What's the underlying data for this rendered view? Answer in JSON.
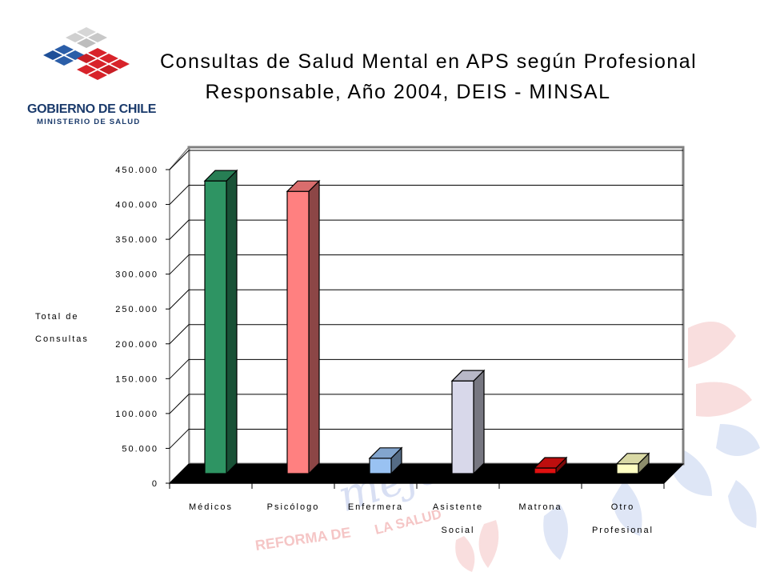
{
  "header": {
    "logo_line1": "GOBIERNO DE CHILE",
    "logo_line2": "MINISTERIO DE SALUD"
  },
  "watermark": {
    "text1": "REFORMA DE",
    "text2": "LA SALUD",
    "text3": "mejor"
  },
  "chart_data": {
    "type": "bar",
    "style": "3d",
    "title_line1": "Consultas de Salud Mental en APS según Profesional",
    "title_line2": "Responsable, Año 2004, DEIS - MINSAL",
    "ylabel_line1": "Total de",
    "ylabel_line2": "Consultas",
    "xlabel": "",
    "ylim": [
      0,
      450000
    ],
    "yticks": [
      {
        "value": 0,
        "label": "0"
      },
      {
        "value": 50000,
        "label": "50.000"
      },
      {
        "value": 100000,
        "label": "100.000"
      },
      {
        "value": 150000,
        "label": "150.000"
      },
      {
        "value": 200000,
        "label": "200.000"
      },
      {
        "value": 250000,
        "label": "250.000"
      },
      {
        "value": 300000,
        "label": "300.000"
      },
      {
        "value": 350000,
        "label": "350.000"
      },
      {
        "value": 400000,
        "label": "400.000"
      },
      {
        "value": 450000,
        "label": "450.000"
      }
    ],
    "grid": true,
    "legend": "none",
    "categories": [
      {
        "line1": "Médicos",
        "line2": ""
      },
      {
        "line1": "Psicólogo",
        "line2": ""
      },
      {
        "line1": "Enfermera",
        "line2": ""
      },
      {
        "line1": "Asistente",
        "line2": "Social"
      },
      {
        "line1": "Matrona",
        "line2": ""
      },
      {
        "line1": "Otro",
        "line2": "Profesional"
      }
    ],
    "values": [
      420000,
      405000,
      22000,
      133000,
      8000,
      14000
    ],
    "colors": [
      "#2e9463",
      "#ff8080",
      "#99c2f2",
      "#d8d8ea",
      "#e01010",
      "#ffffc2"
    ]
  }
}
